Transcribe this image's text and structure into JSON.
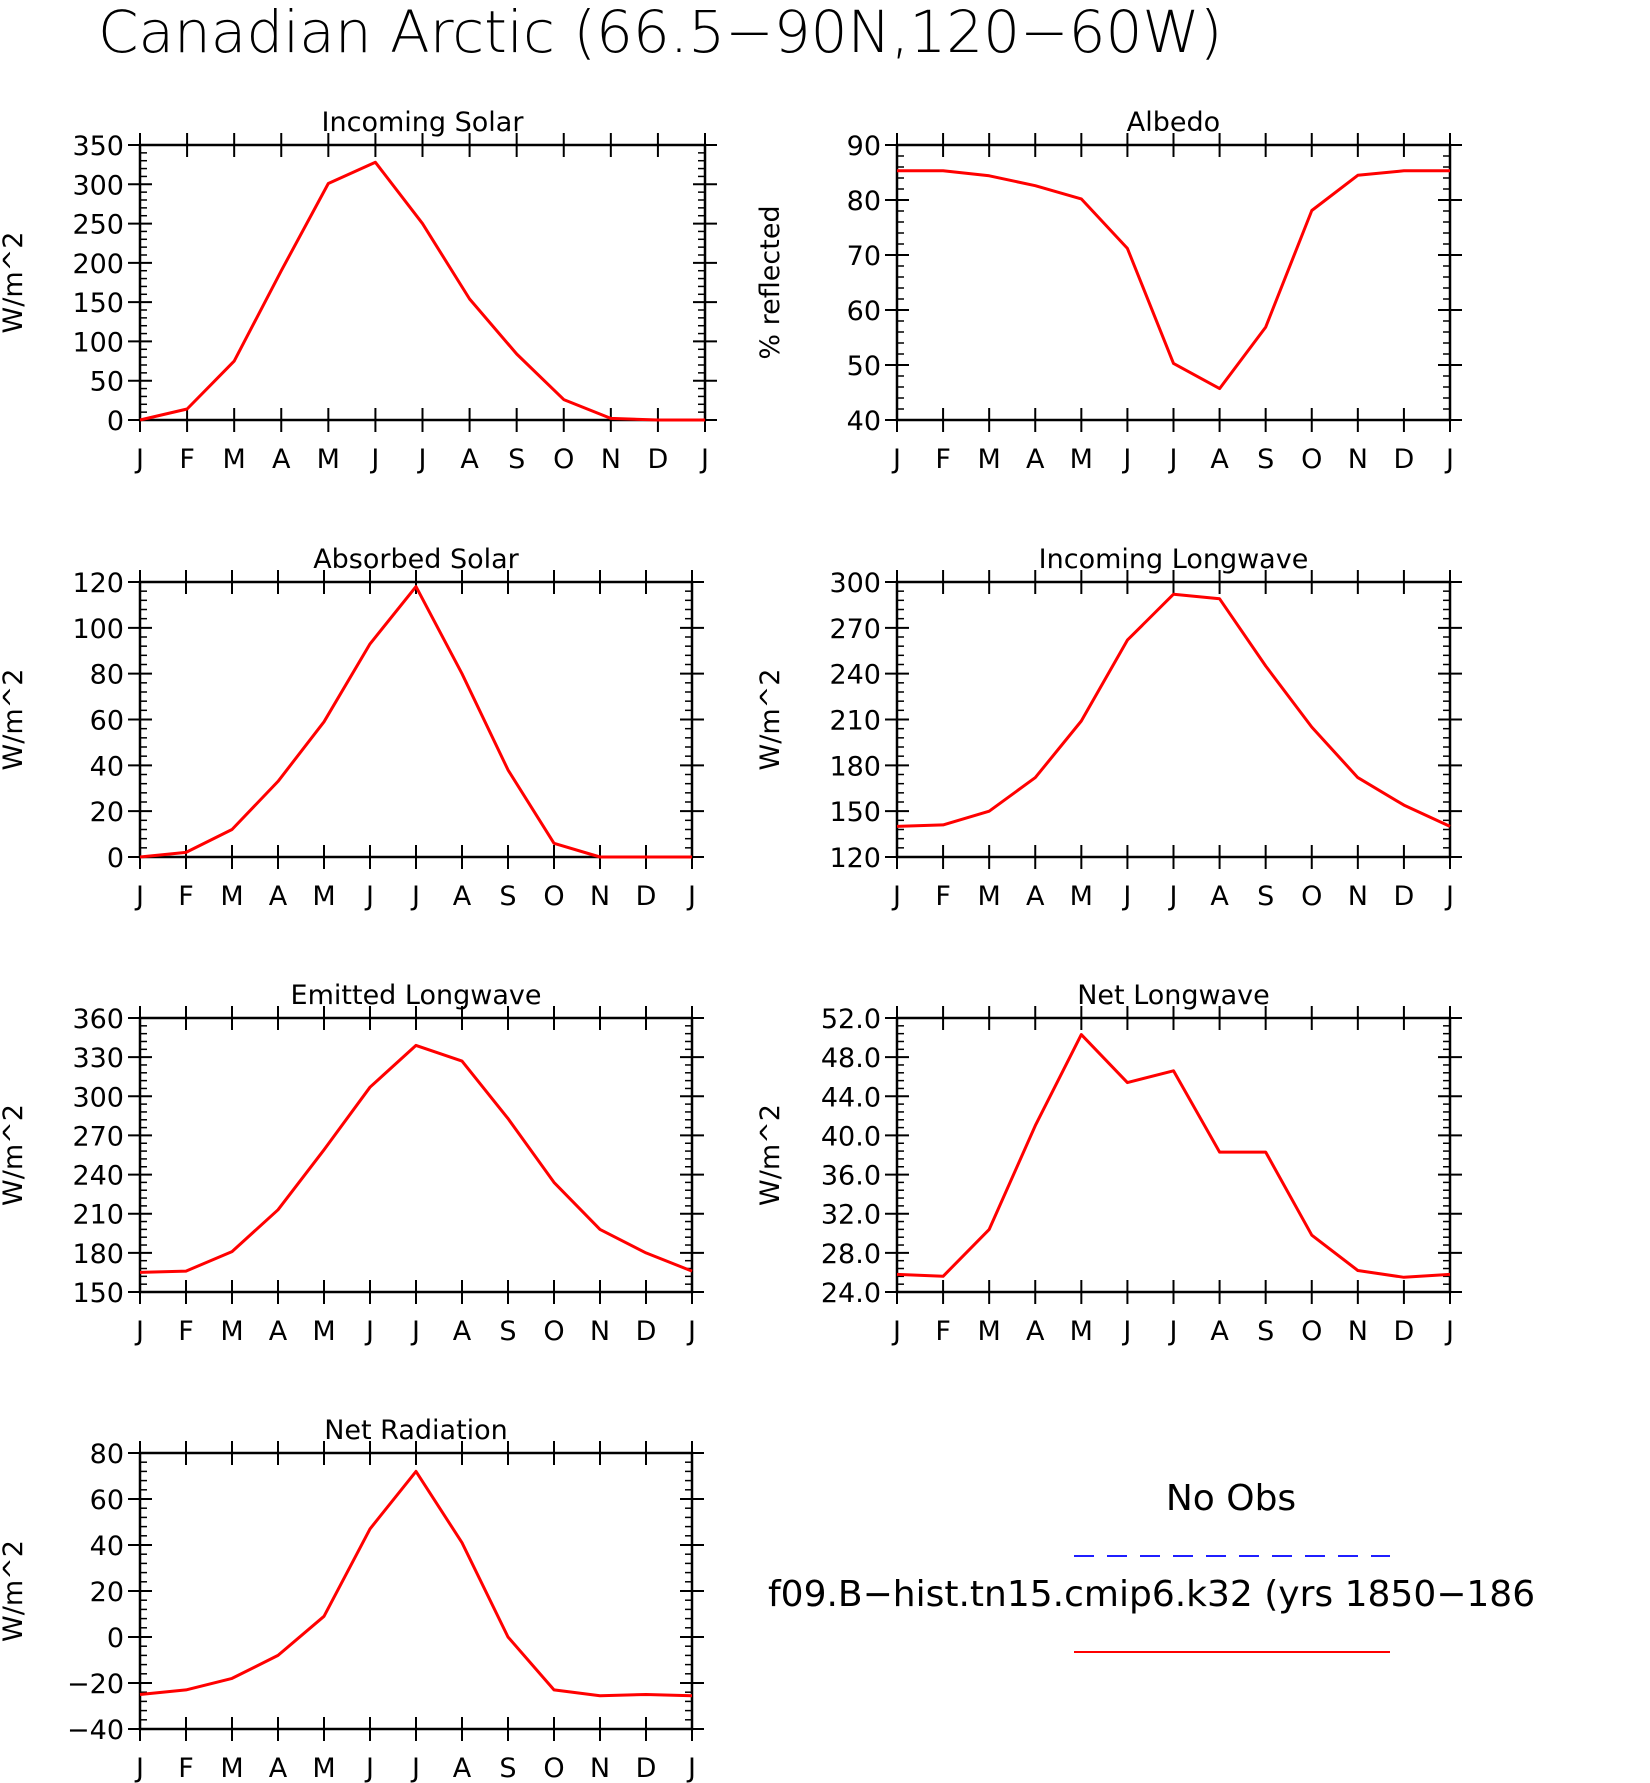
{
  "figure": {
    "title": "Canadian Arctic (66.5−90N,120−60W)"
  },
  "legend": {
    "obs_label": "No Obs",
    "obs_color": "#1f1fff",
    "model_label": "f09.B−hist.tn15.cmip6.k32 (yrs 1850−186",
    "model_color": "#ff0000"
  },
  "chart_data": [
    {
      "type": "line",
      "title": "Incoming Solar",
      "ylabel": "W/m^2",
      "ylim": [
        0,
        350
      ],
      "yticks": [
        "0",
        "50",
        "100",
        "150",
        "200",
        "250",
        "300",
        "350"
      ],
      "categories": [
        "J",
        "F",
        "M",
        "A",
        "M",
        "J",
        "J",
        "A",
        "S",
        "O",
        "N",
        "D",
        "J"
      ],
      "series": [
        {
          "values": [
            0,
            14,
            75,
            190,
            301,
            328,
            250,
            154,
            84,
            26,
            2,
            0,
            0
          ]
        }
      ]
    },
    {
      "type": "line",
      "title": "Albedo",
      "ylabel": "% reflected",
      "ylim": [
        40,
        90
      ],
      "yticks": [
        "40",
        "50",
        "60",
        "70",
        "80",
        "90"
      ],
      "categories": [
        "J",
        "F",
        "M",
        "A",
        "M",
        "J",
        "J",
        "A",
        "S",
        "O",
        "N",
        "D",
        "J"
      ],
      "series": [
        {
          "values": [
            85.3,
            85.3,
            84.4,
            82.6,
            80.2,
            71.2,
            50.3,
            45.7,
            56.9,
            78.1,
            84.5,
            85.3,
            85.3
          ]
        }
      ]
    },
    {
      "type": "line",
      "title": "Absorbed Solar",
      "ylabel": "W/m^2",
      "ylim": [
        0,
        120
      ],
      "yticks": [
        "0",
        "20",
        "40",
        "60",
        "80",
        "100",
        "120"
      ],
      "categories": [
        "J",
        "F",
        "M",
        "A",
        "M",
        "J",
        "J",
        "A",
        "S",
        "O",
        "N",
        "D",
        "J"
      ],
      "series": [
        {
          "values": [
            0,
            2,
            12,
            33,
            59,
            93,
            118,
            80,
            38,
            6,
            0,
            0,
            0
          ]
        }
      ]
    },
    {
      "type": "line",
      "title": "Incoming Longwave",
      "ylabel": "W/m^2",
      "ylim": [
        120,
        300
      ],
      "yticks": [
        "120",
        "150",
        "180",
        "210",
        "240",
        "270",
        "300"
      ],
      "categories": [
        "J",
        "F",
        "M",
        "A",
        "M",
        "J",
        "J",
        "A",
        "S",
        "O",
        "N",
        "D",
        "J"
      ],
      "series": [
        {
          "values": [
            140,
            141,
            150,
            172,
            209,
            262,
            292,
            289,
            245,
            205,
            172,
            154,
            140
          ]
        }
      ]
    },
    {
      "type": "line",
      "title": "Emitted Longwave",
      "ylabel": "W/m^2",
      "ylim": [
        150,
        360
      ],
      "yticks": [
        "150",
        "180",
        "210",
        "240",
        "270",
        "300",
        "330",
        "360"
      ],
      "categories": [
        "J",
        "F",
        "M",
        "A",
        "M",
        "J",
        "J",
        "A",
        "S",
        "O",
        "N",
        "D",
        "J"
      ],
      "series": [
        {
          "values": [
            165,
            166,
            181,
            213,
            259,
            307,
            339,
            327,
            283,
            234,
            198,
            180,
            166
          ]
        }
      ]
    },
    {
      "type": "line",
      "title": "Net Longwave",
      "ylabel": "W/m^2",
      "ylim": [
        24,
        52
      ],
      "yticks": [
        "24.0",
        "28.0",
        "32.0",
        "36.0",
        "40.0",
        "44.0",
        "48.0",
        "52.0"
      ],
      "categories": [
        "J",
        "F",
        "M",
        "A",
        "M",
        "J",
        "J",
        "A",
        "S",
        "O",
        "N",
        "D",
        "J"
      ],
      "series": [
        {
          "values": [
            25.8,
            25.6,
            30.4,
            41.0,
            50.3,
            45.4,
            46.6,
            38.3,
            38.3,
            29.8,
            26.2,
            25.5,
            25.8
          ]
        }
      ]
    },
    {
      "type": "line",
      "title": "Net Radiation",
      "ylabel": "W/m^2",
      "ylim": [
        -40,
        80
      ],
      "yticks": [
        "−40",
        "−20",
        "0",
        "20",
        "40",
        "60",
        "80"
      ],
      "categories": [
        "J",
        "F",
        "M",
        "A",
        "M",
        "J",
        "J",
        "A",
        "S",
        "O",
        "N",
        "D",
        "J"
      ],
      "series": [
        {
          "values": [
            -25,
            -23,
            -18,
            -8,
            9,
            47,
            72,
            41,
            0,
            -23,
            -25.5,
            -25,
            -25.5
          ]
        }
      ]
    }
  ]
}
